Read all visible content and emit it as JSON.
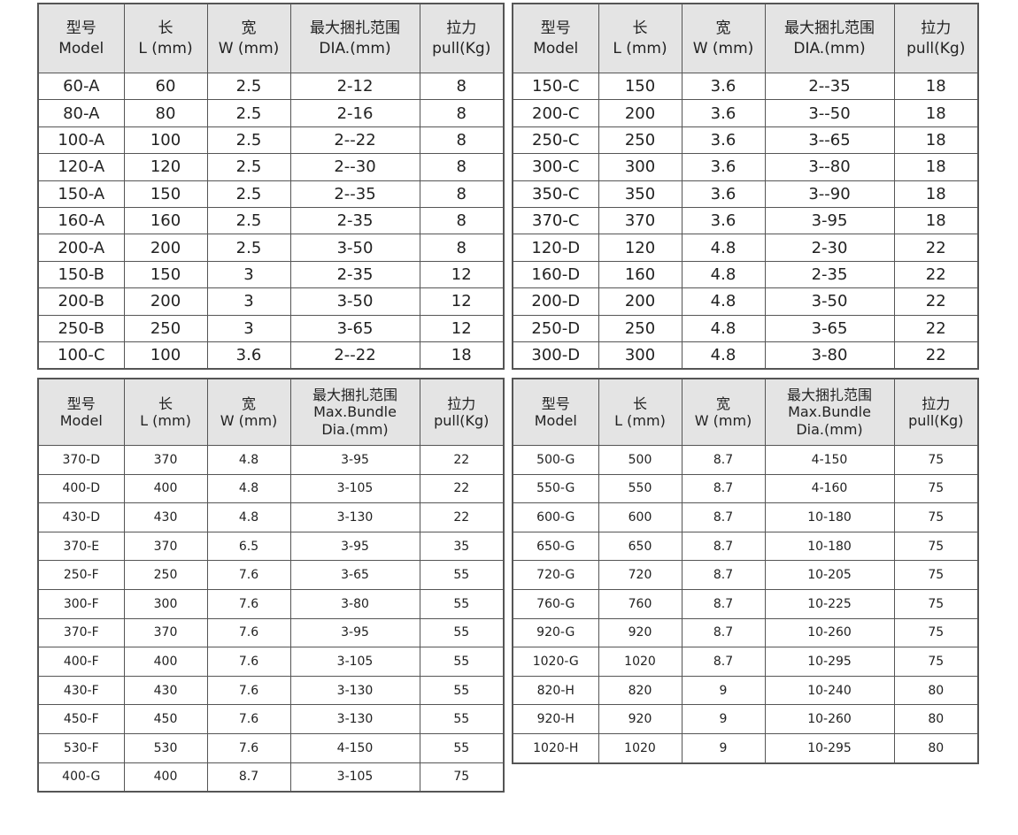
{
  "tables": [
    {
      "headers": [
        [
          "型号",
          "Model"
        ],
        [
          "长",
          "L (mm)"
        ],
        [
          "宽",
          "W (mm)"
        ],
        [
          "最大捆扎范围",
          "DIA.(mm)"
        ],
        [
          "拉力",
          "pull(Kg)"
        ]
      ],
      "rows": [
        [
          "60-A",
          "60",
          "2.5",
          "2-12",
          "8"
        ],
        [
          "80-A",
          "80",
          "2.5",
          "2-16",
          "8"
        ],
        [
          "100-A",
          "100",
          "2.5",
          "2--22",
          "8"
        ],
        [
          "120-A",
          "120",
          "2.5",
          "2--30",
          "8"
        ],
        [
          "150-A",
          "150",
          "2.5",
          "2--35",
          "8"
        ],
        [
          "160-A",
          "160",
          "2.5",
          "2-35",
          "8"
        ],
        [
          "200-A",
          "200",
          "2.5",
          "3-50",
          "8"
        ],
        [
          "150-B",
          "150",
          "3",
          "2-35",
          "12"
        ],
        [
          "200-B",
          "200",
          "3",
          "3-50",
          "12"
        ],
        [
          "250-B",
          "250",
          "3",
          "3-65",
          "12"
        ],
        [
          "100-C",
          "100",
          "3.6",
          "2--22",
          "18"
        ]
      ]
    },
    {
      "headers": [
        [
          "型号",
          "Model"
        ],
        [
          "长",
          "L (mm)"
        ],
        [
          "宽",
          "W (mm)"
        ],
        [
          "最大捆扎范围",
          "DIA.(mm)"
        ],
        [
          "拉力",
          "pull(Kg)"
        ]
      ],
      "rows": [
        [
          "150-C",
          "150",
          "3.6",
          "2--35",
          "18"
        ],
        [
          "200-C",
          "200",
          "3.6",
          "3--50",
          "18"
        ],
        [
          "250-C",
          "250",
          "3.6",
          "3--65",
          "18"
        ],
        [
          "300-C",
          "300",
          "3.6",
          "3--80",
          "18"
        ],
        [
          "350-C",
          "350",
          "3.6",
          "3--90",
          "18"
        ],
        [
          "370-C",
          "370",
          "3.6",
          "3-95",
          "18"
        ],
        [
          "120-D",
          "120",
          "4.8",
          "2-30",
          "22"
        ],
        [
          "160-D",
          "160",
          "4.8",
          "2-35",
          "22"
        ],
        [
          "200-D",
          "200",
          "4.8",
          "3-50",
          "22"
        ],
        [
          "250-D",
          "250",
          "4.8",
          "3-65",
          "22"
        ],
        [
          "300-D",
          "300",
          "4.8",
          "3-80",
          "22"
        ]
      ]
    },
    {
      "headers": [
        [
          "型号",
          "Model"
        ],
        [
          "长",
          "L (mm)"
        ],
        [
          "宽",
          "W (mm)"
        ],
        [
          "最大捆扎范围",
          "Max.Bundle",
          "Dia.(mm)"
        ],
        [
          "拉力",
          "pull(Kg)"
        ]
      ],
      "rows": [
        [
          "370-D",
          "370",
          "4.8",
          "3-95",
          "22"
        ],
        [
          "400-D",
          "400",
          "4.8",
          "3-105",
          "22"
        ],
        [
          "430-D",
          "430",
          "4.8",
          "3-130",
          "22"
        ],
        [
          "370-E",
          "370",
          "6.5",
          "3-95",
          "35"
        ],
        [
          "250-F",
          "250",
          "7.6",
          "3-65",
          "55"
        ],
        [
          "300-F",
          "300",
          "7.6",
          "3-80",
          "55"
        ],
        [
          "370-F",
          "370",
          "7.6",
          "3-95",
          "55"
        ],
        [
          "400-F",
          "400",
          "7.6",
          "3-105",
          "55"
        ],
        [
          "430-F",
          "430",
          "7.6",
          "3-130",
          "55"
        ],
        [
          "450-F",
          "450",
          "7.6",
          "3-130",
          "55"
        ],
        [
          "530-F",
          "530",
          "7.6",
          "4-150",
          "55"
        ],
        [
          "400-G",
          "400",
          "8.7",
          "3-105",
          "75"
        ]
      ]
    },
    {
      "headers": [
        [
          "型号",
          "Model"
        ],
        [
          "长",
          "L (mm)"
        ],
        [
          "宽",
          "W (mm)"
        ],
        [
          "最大捆扎范围",
          "Max.Bundle",
          "Dia.(mm)"
        ],
        [
          "拉力",
          "pull(Kg)"
        ]
      ],
      "rows": [
        [
          "500-G",
          "500",
          "8.7",
          "4-150",
          "75"
        ],
        [
          "550-G",
          "550",
          "8.7",
          "4-160",
          "75"
        ],
        [
          "600-G",
          "600",
          "8.7",
          "10-180",
          "75"
        ],
        [
          "650-G",
          "650",
          "8.7",
          "10-180",
          "75"
        ],
        [
          "720-G",
          "720",
          "8.7",
          "10-205",
          "75"
        ],
        [
          "760-G",
          "760",
          "8.7",
          "10-225",
          "75"
        ],
        [
          "920-G",
          "920",
          "8.7",
          "10-260",
          "75"
        ],
        [
          "1020-G",
          "1020",
          "8.7",
          "10-295",
          "75"
        ],
        [
          "820-H",
          "820",
          "9",
          "10-240",
          "80"
        ],
        [
          "920-H",
          "920",
          "9",
          "10-260",
          "80"
        ],
        [
          "1020-H",
          "1020",
          "9",
          "10-295",
          "80"
        ]
      ]
    }
  ]
}
